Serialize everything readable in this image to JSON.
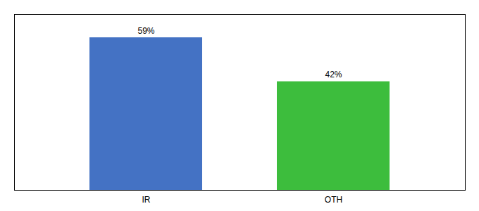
{
  "chart_data": {
    "type": "bar",
    "categories": [
      "IR",
      "OTH"
    ],
    "values": [
      59,
      42
    ],
    "colors": [
      "#4472C4",
      "#3DBD3D"
    ],
    "value_labels": [
      "59%",
      "42%"
    ],
    "data_labels": true,
    "ylim": [
      0,
      68
    ],
    "tick_labels": "x",
    "grid": false
  }
}
